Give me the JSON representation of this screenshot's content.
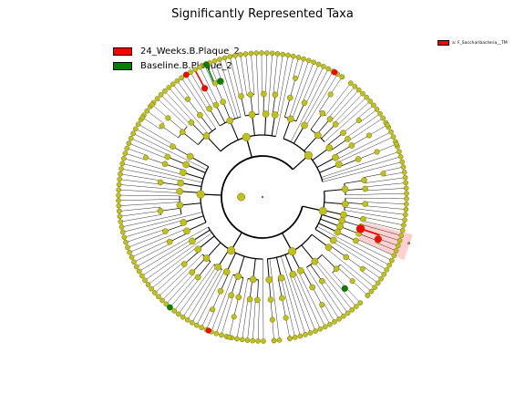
{
  "title": "Significantly Represented Taxa",
  "legend": [
    {
      "label": "24_Weeks.B.Plaque_2",
      "color": "#ff0000"
    },
    {
      "label": "Baseline.B.Plaque_2",
      "color": "#008000"
    }
  ],
  "clade_labels": [
    {
      "text": "a: F_Saccharibacteria__TM",
      "color": "#ff0000"
    }
  ],
  "highlight_marker": "a",
  "colors": {
    "node_default": "#c0c020",
    "node_edge": "#555500",
    "group_a": "#ff0000",
    "group_b": "#008000",
    "clade_shade": "#ffaaaa",
    "branch": "#000000"
  }
}
